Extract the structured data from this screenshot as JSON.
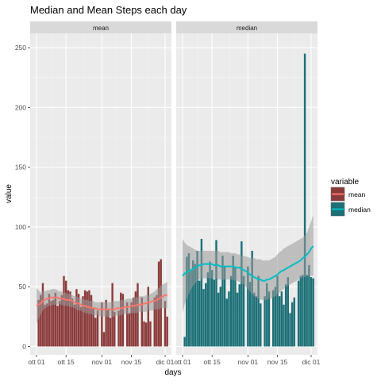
{
  "chart_data": {
    "type": "bar",
    "title": "Median and Mean Steps each day",
    "xlabel": "days",
    "ylabel": "value",
    "facets": [
      "mean",
      "median"
    ],
    "ylim": [
      -7,
      262
    ],
    "y_ticks": [
      0,
      50,
      100,
      150,
      200,
      250
    ],
    "x_tick_labels": [
      "ott 01",
      "ott 15",
      "nov 01",
      "nov 15",
      "dic 01"
    ],
    "x_tick_days": [
      0,
      14,
      31,
      45,
      61
    ],
    "xlim_days": [
      -3,
      64
    ],
    "legend": {
      "title": "variable",
      "position": "right",
      "entries": [
        {
          "label": "mean",
          "color": "#F8766D",
          "fill": "#8B3A3A"
        },
        {
          "label": "median",
          "color": "#00BFC4",
          "fill": "#1B6F76"
        }
      ]
    },
    "series": [
      {
        "name": "mean",
        "values": [
          0,
          39,
          43,
          53,
          35,
          36,
          44,
          38,
          39,
          45,
          34,
          38,
          43,
          59,
          55,
          47,
          46,
          40,
          35,
          48,
          44,
          33,
          42,
          47,
          46,
          47,
          43,
          32,
          24,
          30,
          0,
          37,
          12,
          39,
          31,
          24,
          53,
          29,
          0,
          30,
          45,
          44,
          0,
          37,
          28,
          37,
          41,
          46,
          53,
          0,
          41,
          21,
          20,
          50,
          21,
          0,
          41,
          43,
          71,
          73,
          0,
          38,
          25
        ],
        "smooth": [
          34,
          35,
          36,
          38,
          39,
          40,
          40,
          41,
          41,
          41,
          41,
          40,
          40,
          40,
          39,
          39,
          39,
          38,
          37,
          36,
          36,
          35,
          34,
          34,
          33,
          33,
          32,
          32,
          32,
          31,
          31,
          31,
          31,
          31,
          31,
          31,
          31,
          31,
          32,
          32,
          32,
          32,
          33,
          33,
          33,
          34,
          34,
          34,
          35,
          35,
          35,
          36,
          36,
          37,
          37,
          38,
          38,
          39,
          40,
          41,
          42,
          43,
          43
        ],
        "band_low": [
          19,
          23,
          27,
          30,
          32,
          33,
          34,
          34,
          35,
          35,
          35,
          35,
          35,
          34,
          34,
          34,
          33,
          33,
          32,
          31,
          30,
          30,
          29,
          28,
          28,
          27,
          27,
          26,
          26,
          26,
          25,
          25,
          25,
          25,
          25,
          25,
          25,
          25,
          26,
          26,
          26,
          27,
          27,
          27,
          27,
          28,
          28,
          28,
          28,
          29,
          29,
          29,
          29,
          30,
          30,
          30,
          31,
          31,
          31,
          32,
          32,
          32,
          32
        ],
        "band_high": [
          49,
          47,
          45,
          46,
          46,
          47,
          47,
          48,
          48,
          48,
          47,
          46,
          46,
          45,
          45,
          44,
          44,
          43,
          42,
          42,
          41,
          40,
          40,
          39,
          39,
          38,
          38,
          38,
          37,
          37,
          37,
          37,
          37,
          37,
          37,
          37,
          38,
          38,
          38,
          38,
          39,
          39,
          39,
          40,
          40,
          40,
          41,
          41,
          41,
          42,
          42,
          42,
          43,
          43,
          44,
          45,
          46,
          48,
          49,
          51,
          52,
          53,
          54
        ]
      },
      {
        "name": "median",
        "values": [
          0,
          8,
          75,
          78,
          64,
          72,
          69,
          80,
          55,
          90,
          48,
          53,
          62,
          71,
          64,
          56,
          89,
          45,
          50,
          76,
          67,
          40,
          46,
          59,
          76,
          67,
          45,
          52,
          88,
          59,
          0,
          67,
          54,
          80,
          45,
          42,
          59,
          36,
          0,
          42,
          53,
          46,
          0,
          47,
          50,
          59,
          42,
          46,
          35,
          52,
          58,
          28,
          37,
          41,
          0,
          55,
          59,
          60,
          245,
          60,
          68,
          58,
          57
        ],
        "smooth": [
          59,
          61,
          62,
          63,
          64,
          65,
          66,
          67,
          68,
          68,
          69,
          69,
          69,
          69,
          69,
          68,
          68,
          68,
          67,
          67,
          67,
          67,
          67,
          67,
          67,
          66,
          66,
          66,
          65,
          64,
          63,
          62,
          60,
          59,
          58,
          57,
          56,
          56,
          55,
          55,
          56,
          56,
          57,
          58,
          59,
          60,
          62,
          63,
          64,
          65,
          66,
          67,
          68,
          69,
          70,
          71,
          72,
          74,
          75,
          77,
          79,
          82,
          84
        ],
        "band_low": [
          28,
          35,
          40,
          44,
          48,
          51,
          53,
          55,
          56,
          57,
          57,
          57,
          57,
          57,
          57,
          57,
          57,
          56,
          56,
          56,
          56,
          56,
          56,
          56,
          56,
          55,
          55,
          54,
          53,
          52,
          50,
          48,
          46,
          44,
          42,
          41,
          40,
          39,
          39,
          39,
          39,
          40,
          40,
          41,
          42,
          44,
          45,
          47,
          48,
          50,
          51,
          52,
          53,
          54,
          55,
          56,
          57,
          58,
          58,
          59,
          59,
          59,
          59
        ],
        "band_high": [
          90,
          87,
          85,
          84,
          83,
          82,
          81,
          80,
          80,
          80,
          80,
          80,
          80,
          80,
          80,
          80,
          80,
          80,
          79,
          79,
          79,
          79,
          79,
          78,
          78,
          78,
          77,
          77,
          76,
          76,
          75,
          75,
          74,
          74,
          74,
          73,
          73,
          73,
          72,
          72,
          72,
          72,
          73,
          74,
          75,
          77,
          79,
          80,
          82,
          83,
          84,
          85,
          86,
          87,
          88,
          89,
          90,
          91,
          93,
          95,
          100,
          105,
          110
        ]
      }
    ]
  }
}
